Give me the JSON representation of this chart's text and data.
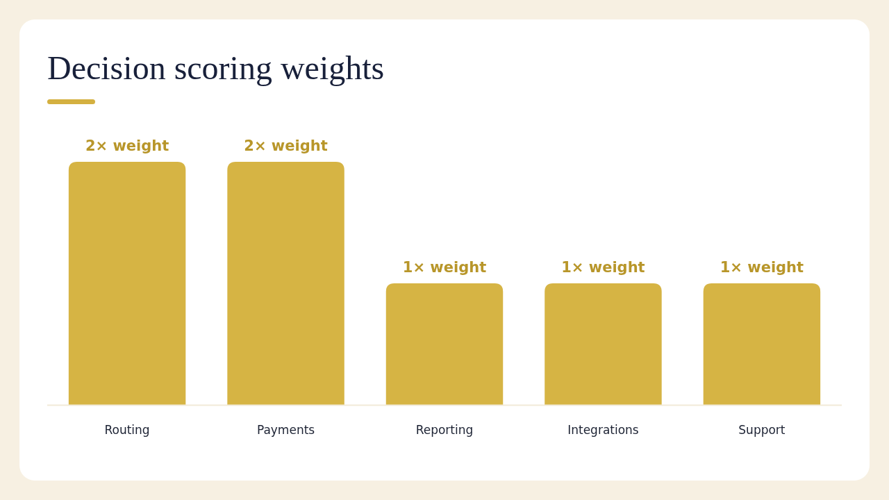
{
  "chart_data": {
    "type": "bar",
    "title": "Decision scoring weights",
    "categories": [
      "Routing",
      "Payments",
      "Reporting",
      "Integrations",
      "Support"
    ],
    "values": [
      2,
      2,
      1,
      1,
      1
    ],
    "value_labels": [
      "2× weight",
      "2× weight",
      "1× weight",
      "1× weight",
      "1× weight"
    ],
    "color": "#d6b444"
  }
}
